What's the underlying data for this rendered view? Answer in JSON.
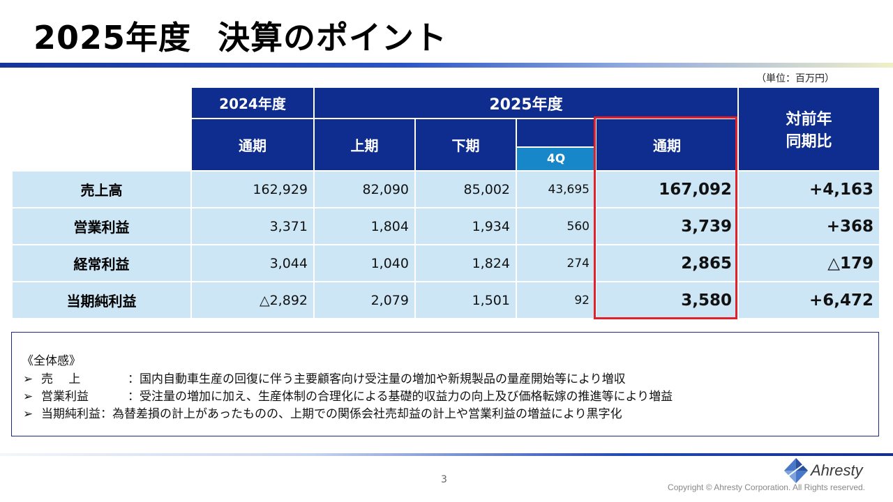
{
  "header": {
    "title_year": "2025年度",
    "title_rest": "決算のポイント",
    "unit": "（単位：百万円）"
  },
  "table": {
    "headers": {
      "fy2024": "2024年度",
      "fy2025": "2025年度",
      "full_year_prev": "通期",
      "h1": "上期",
      "h2": "下期",
      "q4": "4Q",
      "full_year": "通期",
      "yoy_line1": "対前年",
      "yoy_line2": "同期比"
    },
    "rows": [
      {
        "label": "売上高",
        "prev_full": "162,929",
        "h1": "82,090",
        "h2": "85,002",
        "q4": "43,695",
        "full": "167,092",
        "yoy": "+4,163"
      },
      {
        "label": "営業利益",
        "prev_full": "3,371",
        "h1": "1,804",
        "h2": "1,934",
        "q4": "560",
        "full": "3,739",
        "yoy": "+368"
      },
      {
        "label": "経常利益",
        "prev_full": "3,044",
        "h1": "1,040",
        "h2": "1,824",
        "q4": "274",
        "full": "2,865",
        "yoy": "△179"
      },
      {
        "label": "当期純利益",
        "prev_full": "△2,892",
        "h1": "2,079",
        "h2": "1,501",
        "q4": "92",
        "full": "3,580",
        "yoy": "+6,472"
      }
    ]
  },
  "summary": {
    "heading": "《全体感》",
    "items": [
      {
        "bullet": "➢",
        "label": "売　 上",
        "text": "：国内自動車生産の回復に伴う主要顧客向け受注量の増加や新規製品の量産開始等により増収"
      },
      {
        "bullet": "➢",
        "label": "営業利益",
        "text": "：受注量の増加に加え、生産体制の合理化による基礎的収益力の向上及び価格転嫁の推進等により増益"
      },
      {
        "bullet": "➢",
        "label": "当期純利益",
        "text": "：為替差損の計上があったものの、上期での関係会社売却益の計上や営業利益の増益により黒字化"
      }
    ]
  },
  "footer": {
    "page_number": "3",
    "logo_text": "Ahresty",
    "copyright": "Copyright © Ahresty Corporation. All Rights reserved."
  },
  "colors": {
    "header_navy": "#0f2d8f",
    "q4_blue": "#1887c9",
    "cell_lightblue": "#cce6f5",
    "highlight_red": "#e0202a"
  },
  "icons": {
    "logo_mark": "ahresty-diamond-logo-icon"
  }
}
